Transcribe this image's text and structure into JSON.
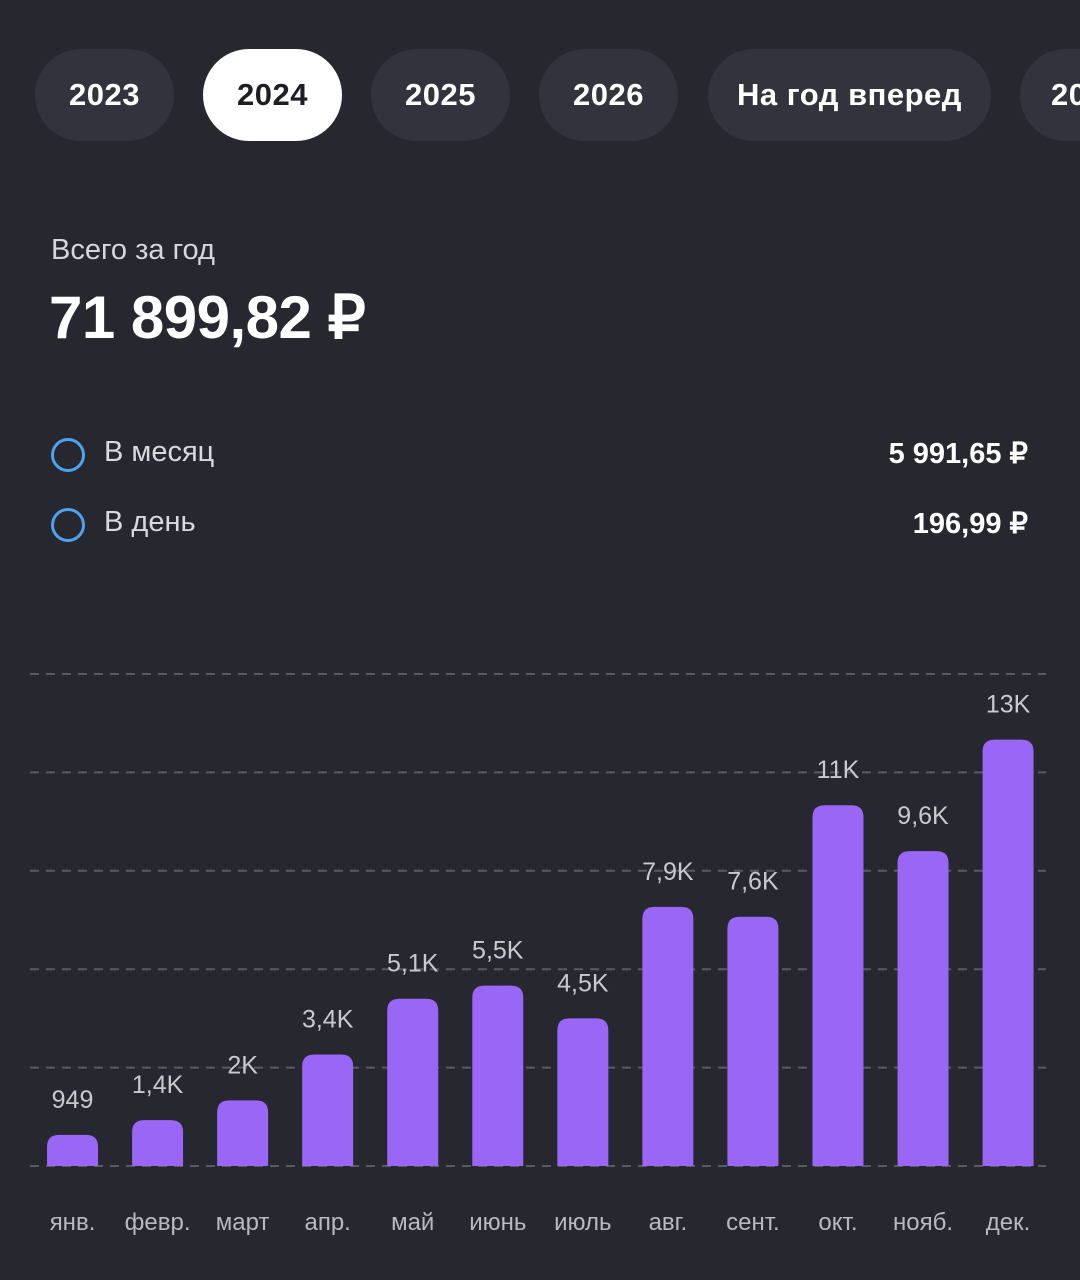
{
  "tabs": [
    {
      "label": "2023",
      "active": false
    },
    {
      "label": "2024",
      "active": true
    },
    {
      "label": "2025",
      "active": false
    },
    {
      "label": "2026",
      "active": false
    },
    {
      "label": "На год вперед",
      "active": false
    },
    {
      "label": "20",
      "active": false
    }
  ],
  "summary": {
    "total_label": "Всего за год",
    "total_value": "71 899,82 ₽",
    "per_month_label": "В месяц",
    "per_month_value": "5 991,65 ₽",
    "per_day_label": "В день",
    "per_day_value": "196,99 ₽"
  },
  "colors": {
    "background": "#27272f",
    "tab_inactive": "#32333d",
    "tab_active": "#ffffff",
    "bar": "#9966f5",
    "ring": "#4da3f0"
  },
  "chart_data": {
    "type": "bar",
    "categories": [
      "янв.",
      "февр.",
      "март",
      "апр.",
      "май",
      "июнь",
      "июль",
      "авг.",
      "сент.",
      "окт.",
      "нояб.",
      "дек."
    ],
    "values": [
      949,
      1400,
      2000,
      3400,
      5100,
      5500,
      4500,
      7900,
      7600,
      11000,
      9600,
      13000
    ],
    "value_labels": [
      "949",
      "1,4K",
      "2K",
      "3,4K",
      "5,1K",
      "5,5K",
      "4,5K",
      "7,9K",
      "7,6K",
      "11K",
      "9,6K",
      "13K"
    ],
    "ylim": [
      0,
      15000
    ],
    "grid": true,
    "gridlines": [
      0,
      3000,
      6000,
      9000,
      12000,
      15000
    ]
  }
}
